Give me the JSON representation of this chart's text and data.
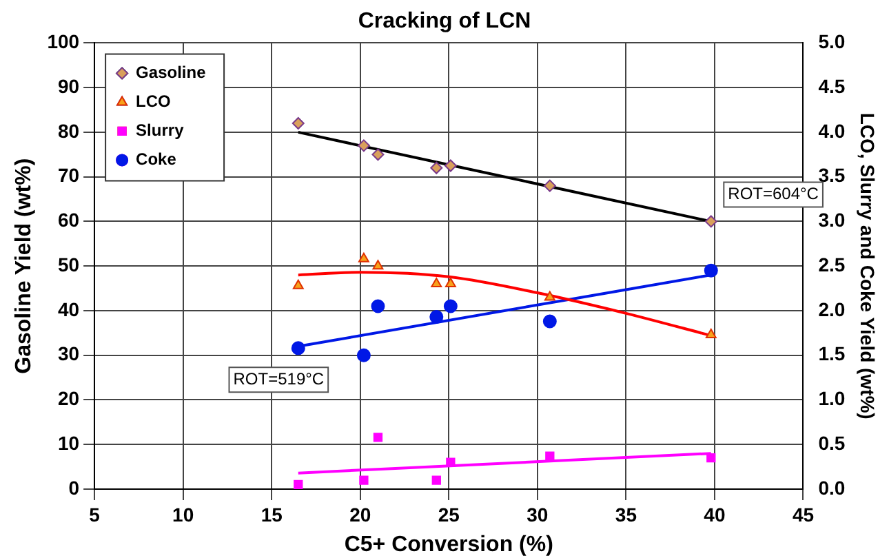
{
  "chart_data": {
    "type": "scatter",
    "title": "Cracking of LCN",
    "xlabel": "C5+ Conversion (%)",
    "ylabel": "Gasoline Yield (wt%)",
    "y2label": "LCO, Slurry and Coke Yield (wt%)",
    "xlim": [
      5,
      45
    ],
    "xticks": [
      5,
      10,
      15,
      20,
      25,
      30,
      35,
      40,
      45
    ],
    "ylim": [
      0,
      100
    ],
    "yticks": [
      0,
      10,
      20,
      30,
      40,
      50,
      60,
      70,
      80,
      90,
      100
    ],
    "y2lim": [
      0,
      5
    ],
    "y2ticks": [
      {
        "value": 0,
        "label": "0.0"
      },
      {
        "value": 0.5,
        "label": "0.5"
      },
      {
        "value": 1,
        "label": "1.0"
      },
      {
        "value": 1.5,
        "label": "1.5"
      },
      {
        "value": 2,
        "label": "2.0"
      },
      {
        "value": 2.5,
        "label": "2.5"
      },
      {
        "value": 3,
        "label": "3.0"
      },
      {
        "value": 3.5,
        "label": "3.5"
      },
      {
        "value": 4,
        "label": "4.0"
      },
      {
        "value": 4.5,
        "label": "4.5"
      },
      {
        "value": 5,
        "label": "5.0"
      }
    ],
    "x": [
      16.5,
      20.2,
      21,
      24.3,
      25.1,
      30.7,
      39.8
    ],
    "grid": true,
    "legend": "top left",
    "series": [
      {
        "name": "Gasoline",
        "type": "scatter",
        "marker": "diamond",
        "color": "#d9a05b",
        "values": [
          82,
          77,
          75,
          72,
          72.5,
          68,
          60
        ]
      },
      {
        "name": "LCO",
        "type": "scatter",
        "marker": "triangle",
        "axis": "y2",
        "color": "#f7a21b",
        "values": [
          2.28,
          2.58,
          2.5,
          2.3,
          2.3,
          2.15,
          1.73
        ]
      },
      {
        "name": "Slurry",
        "type": "scatter",
        "marker": "square",
        "axis": "y2",
        "color": "#ff00ff",
        "values": [
          0.05,
          0.1,
          0.58,
          0.1,
          0.3,
          0.37,
          0.35
        ]
      },
      {
        "name": "Coke",
        "type": "scatter",
        "marker": "circle",
        "axis": "y2",
        "color": "#0018e6",
        "values": [
          1.58,
          1.5,
          2.05,
          1.93,
          2.05,
          1.88,
          2.45
        ]
      },
      {
        "type": "line",
        "marker": "none",
        "color": "#000000",
        "x": [
          16.5,
          39.8
        ],
        "values": [
          80,
          60
        ]
      },
      {
        "type": "line",
        "marker": "none",
        "axis": "y2",
        "color": "#ff0000",
        "x": [
          16.5,
          20,
          25,
          30,
          35,
          39.8
        ],
        "values": [
          2.4,
          2.43,
          2.38,
          2.2,
          1.97,
          1.72
        ]
      },
      {
        "type": "line",
        "marker": "none",
        "axis": "y2",
        "color": "#0018e6",
        "x": [
          16.5,
          39.8
        ],
        "values": [
          1.6,
          2.4
        ]
      },
      {
        "type": "line",
        "marker": "none",
        "axis": "y2",
        "color": "#ff00ff",
        "x": [
          16.5,
          39.8
        ],
        "values": [
          0.18,
          0.4
        ]
      }
    ],
    "annotations": [
      "ROT=604°C",
      "ROT=519°C"
    ]
  }
}
